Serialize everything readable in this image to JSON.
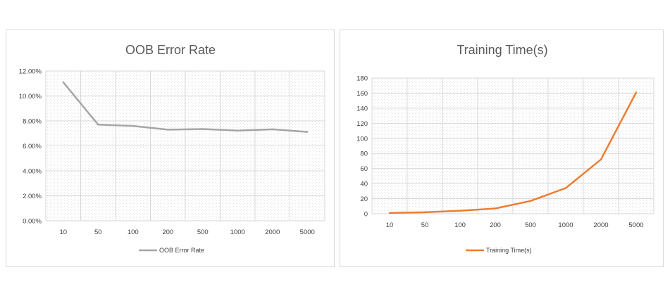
{
  "charts": {
    "oob": {
      "chart_data": {
        "type": "line",
        "title": "OOB Error Rate",
        "categories": [
          "10",
          "50",
          "100",
          "200",
          "500",
          "1000",
          "2000",
          "5000"
        ],
        "series": [
          {
            "name": "OOB Error Rate",
            "values": [
              0.111,
              0.077,
              0.076,
              0.073,
              0.0735,
              0.0722,
              0.0733,
              0.0712
            ]
          }
        ],
        "y_ticks": [
          "0.00%",
          "2.00%",
          "4.00%",
          "6.00%",
          "8.00%",
          "10.00%",
          "12.00%"
        ],
        "ylim": [
          0,
          0.12
        ],
        "grid": true,
        "legend": "bottom",
        "color": "#a5a5a5"
      }
    },
    "time": {
      "chart_data": {
        "type": "line",
        "title": "Training Time(s)",
        "categories": [
          "10",
          "50",
          "100",
          "200",
          "500",
          "1000",
          "2000",
          "5000"
        ],
        "series": [
          {
            "name": "Training Time(s)",
            "values": [
              1,
              2,
              4,
              7,
              17,
              34,
              72,
              161
            ]
          }
        ],
        "y_ticks": [
          "0",
          "20",
          "40",
          "60",
          "80",
          "100",
          "120",
          "140",
          "160",
          "180"
        ],
        "ylim": [
          0,
          180
        ],
        "grid": true,
        "legend": "bottom",
        "color": "#ed7d31"
      }
    }
  }
}
